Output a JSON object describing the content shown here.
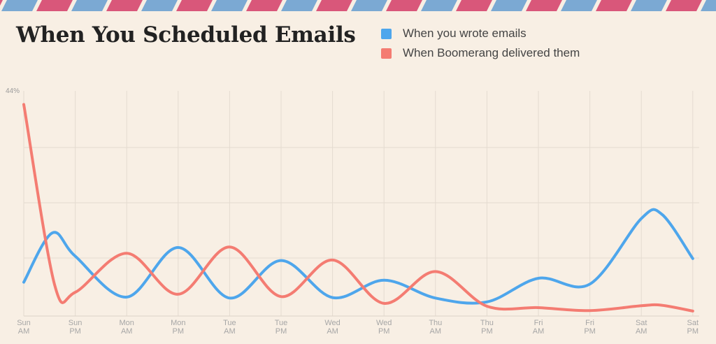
{
  "title": "When You Scheduled Emails",
  "colors": {
    "background": "#f8efe4",
    "wrote": "#4ea6ec",
    "delivered": "#f47c72",
    "stripe_red": "#d9577a",
    "stripe_blue": "#7ba9d3"
  },
  "legend": [
    {
      "label": "When you wrote emails",
      "color": "#4ea6ec"
    },
    {
      "label": "When Boomerang delivered them",
      "color": "#f47c72"
    }
  ],
  "chart_data": {
    "type": "line",
    "title": "When You Scheduled Emails",
    "y_max_label": "44%",
    "ylim": [
      0,
      44
    ],
    "grid": true,
    "legend_position": "top-right",
    "categories": [
      [
        "Sun",
        "AM"
      ],
      [
        "Sun",
        "PM"
      ],
      [
        "Mon",
        "AM"
      ],
      [
        "Mon",
        "PM"
      ],
      [
        "Tue",
        "AM"
      ],
      [
        "Tue",
        "PM"
      ],
      [
        "Wed",
        "AM"
      ],
      [
        "Wed",
        "PM"
      ],
      [
        "Thu",
        "AM"
      ],
      [
        "Thu",
        "PM"
      ],
      [
        "Fri",
        "AM"
      ],
      [
        "Fri",
        "PM"
      ],
      [
        "Sat",
        "AM"
      ],
      [
        "Sat",
        "PM"
      ]
    ],
    "series": [
      {
        "name": "When you wrote emails",
        "color": "#4ea6ec",
        "x": [
          0,
          0.55,
          1,
          2,
          3,
          4,
          5,
          6,
          7,
          8,
          9,
          10,
          11,
          12,
          12.4,
          13
        ],
        "y": [
          6.6,
          16.8,
          12,
          3.5,
          13.8,
          3.3,
          11.1,
          3.4,
          7,
          3.3,
          2.5,
          7.4,
          6.2,
          19.8,
          20.7,
          11.5
        ]
      },
      {
        "name": "When Boomerang delivered them",
        "color": "#f47c72",
        "x": [
          0,
          0.6,
          1,
          2,
          3,
          4,
          5,
          6,
          7,
          8,
          9,
          10,
          11,
          12,
          12.4,
          13
        ],
        "y": [
          43.5,
          6,
          4.5,
          12.6,
          4.1,
          13.9,
          3.6,
          11.2,
          2.2,
          8.8,
          1.6,
          1.3,
          0.7,
          1.7,
          1.8,
          0.6
        ]
      }
    ]
  }
}
